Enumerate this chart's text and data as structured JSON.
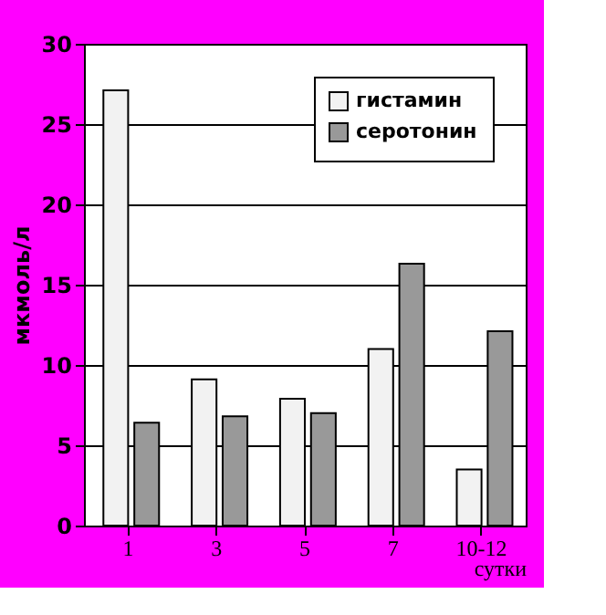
{
  "chart_data": {
    "type": "bar",
    "categories": [
      "1",
      "3",
      "5",
      "7",
      "10-12"
    ],
    "series": [
      {
        "name": "гистамин",
        "color": "#f2f2f2",
        "values": [
          27.1,
          9.1,
          7.9,
          11.0,
          3.5
        ]
      },
      {
        "name": "серотонин",
        "color": "#999999",
        "values": [
          6.4,
          6.8,
          7.0,
          16.3,
          12.1
        ]
      }
    ],
    "xlabel": "сутки",
    "ylabel": "мкмоль/л",
    "ylim": [
      0,
      30
    ],
    "yticks": [
      0,
      5,
      10,
      15,
      20,
      25,
      30
    ],
    "grid": "y",
    "legend": "top right"
  }
}
